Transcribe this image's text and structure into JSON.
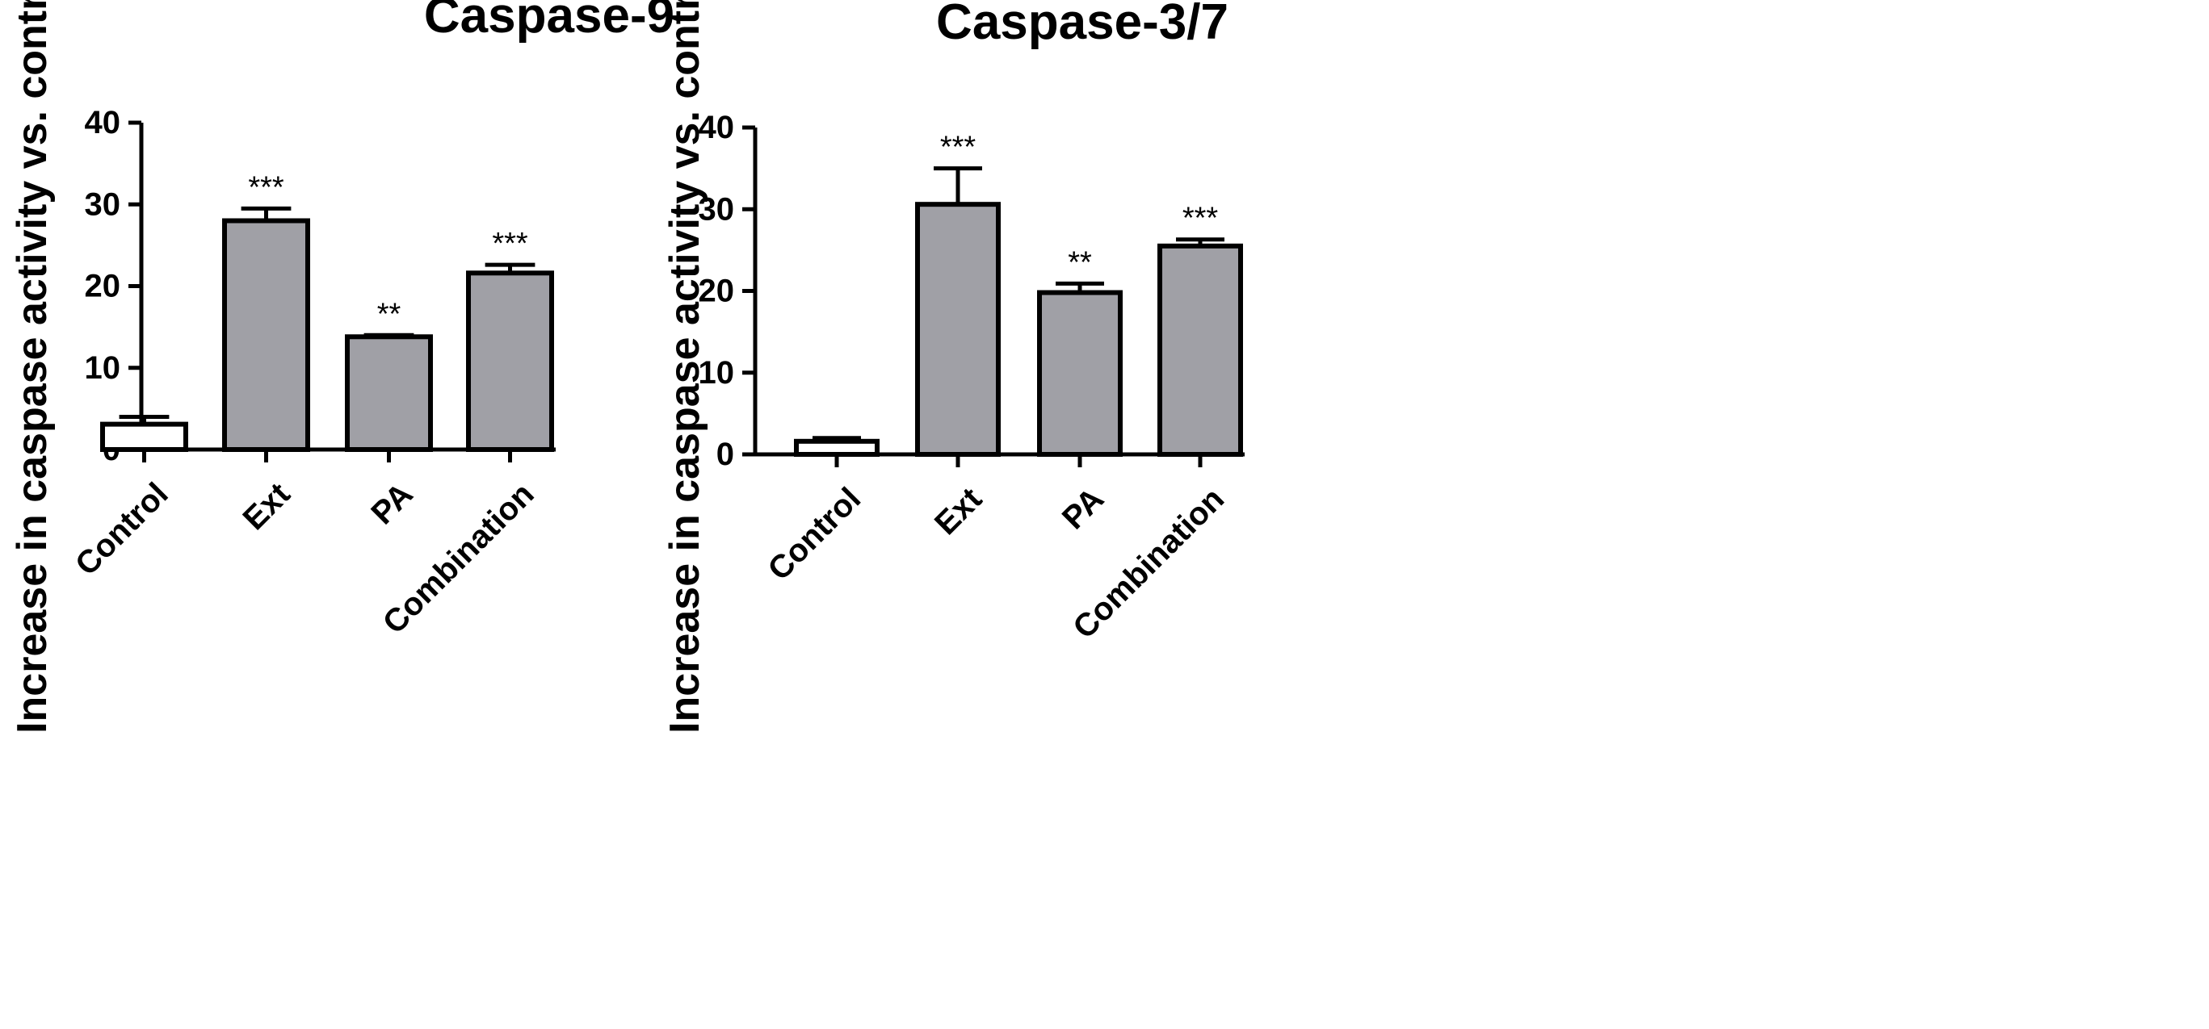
{
  "chart_data": [
    {
      "type": "bar",
      "title": "Caspase-9",
      "xlabel": "",
      "ylabel": "Increase in caspase activity vs. control (%)",
      "ylim": [
        0,
        40
      ],
      "yticks": [
        0,
        10,
        20,
        30,
        40
      ],
      "categories": [
        "Control",
        "Ext",
        "PA",
        "Combination"
      ],
      "values": [
        3.1,
        28,
        13.8,
        21.6
      ],
      "errors": [
        0.9,
        1.5,
        0.2,
        1.0
      ],
      "significance": [
        "",
        "***",
        "**",
        "***"
      ],
      "bar_colors": [
        "#ffffff",
        "#a0a0a6",
        "#a0a0a6",
        "#a0a0a6"
      ]
    },
    {
      "type": "bar",
      "title": "Caspase-3/7",
      "xlabel": "",
      "ylabel": "Increase in caspase activity vs. control (%)",
      "ylim": [
        0,
        40
      ],
      "yticks": [
        0,
        10,
        20,
        30,
        40
      ],
      "categories": [
        "Control",
        "Ext",
        "PA",
        "Combination"
      ],
      "values": [
        1.6,
        30.6,
        19.8,
        25.5
      ],
      "errors": [
        0.4,
        4.4,
        1.1,
        0.8
      ],
      "significance": [
        "",
        "***",
        "**",
        "***"
      ],
      "bar_colors": [
        "#ffffff",
        "#a0a0a6",
        "#a0a0a6",
        "#a0a0a6"
      ]
    }
  ]
}
